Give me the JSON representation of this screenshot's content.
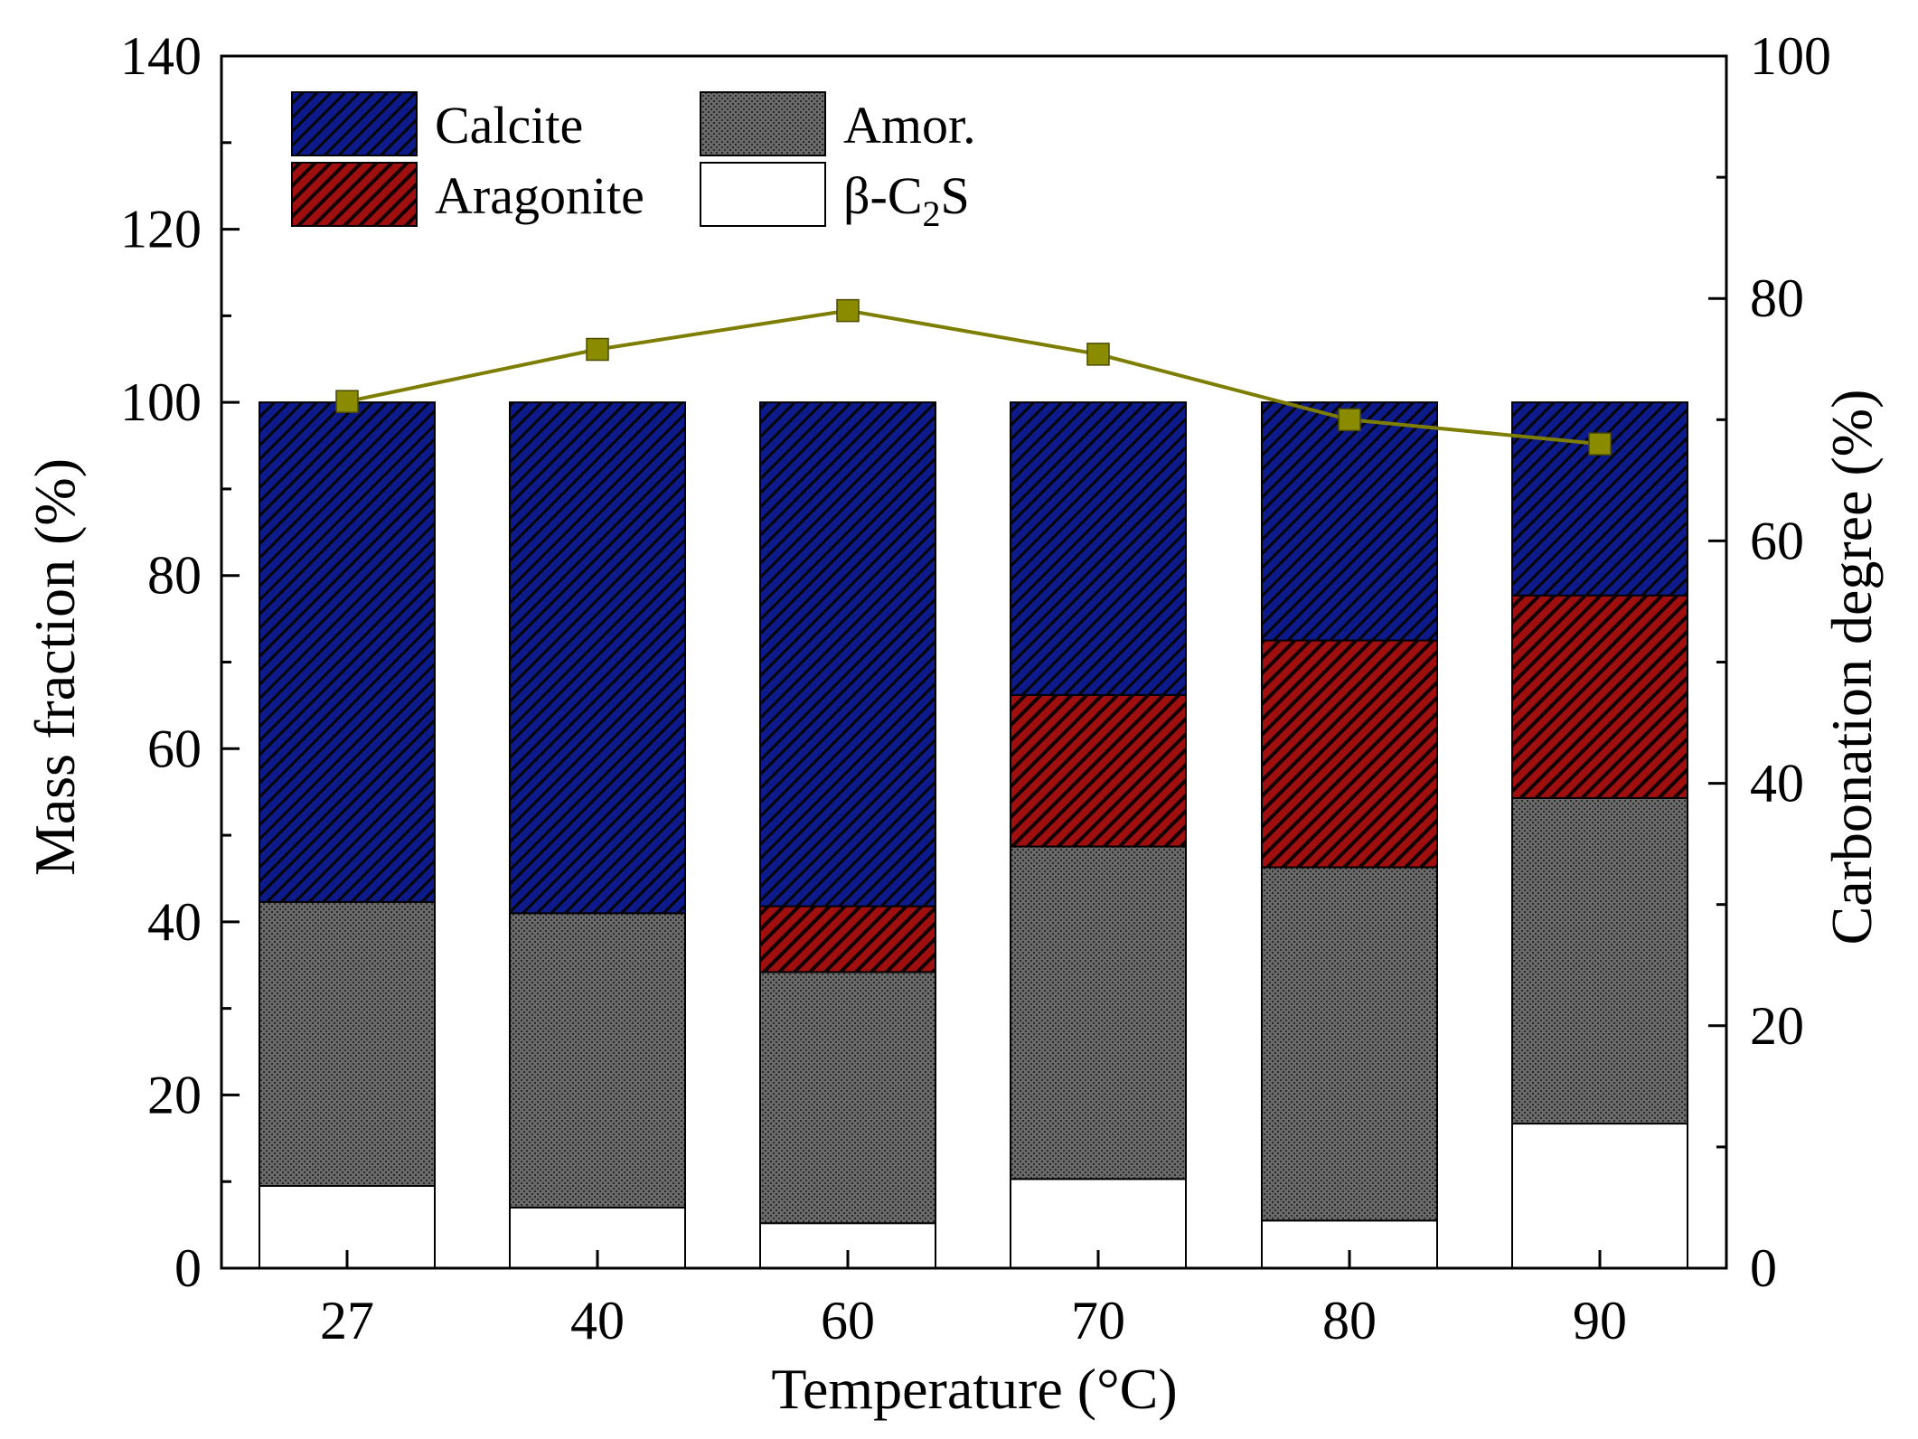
{
  "chart_data": {
    "type": "bar",
    "subtype": "stacked bar with line on secondary axis",
    "categories": [
      "27",
      "40",
      "60",
      "70",
      "80",
      "90"
    ],
    "xlabel": "Temperature (°C)",
    "ylabel": "Mass fraction (%)",
    "y2label": "Carbonation degree (%)",
    "ylim": [
      0,
      140
    ],
    "y2lim": [
      0,
      100
    ],
    "yticks": [
      "0",
      "20",
      "40",
      "60",
      "80",
      "100",
      "120",
      "140"
    ],
    "y2ticks": [
      "0",
      "20",
      "40",
      "60",
      "80",
      "100"
    ],
    "series": [
      {
        "name": "β-C2S",
        "key": "c2s",
        "values": [
          9.5,
          7.0,
          5.2,
          10.3,
          5.5,
          16.7
        ]
      },
      {
        "name": "Amor.",
        "key": "amor",
        "values": [
          32.8,
          34.0,
          29.0,
          38.4,
          40.8,
          37.6
        ]
      },
      {
        "name": "Aragonite",
        "key": "aragonite",
        "values": [
          0,
          0,
          7.6,
          17.5,
          26.2,
          23.4
        ]
      },
      {
        "name": "Calcite",
        "key": "calcite",
        "values": [
          57.7,
          59.0,
          58.2,
          33.8,
          27.5,
          22.3
        ]
      }
    ],
    "line": {
      "name": "Carbonation degree",
      "axis": "right",
      "values": [
        71.5,
        75.8,
        79.0,
        75.4,
        70.0,
        68.0
      ]
    },
    "legend": {
      "placement": "top-left",
      "items": [
        {
          "key": "calcite",
          "label": "Calcite"
        },
        {
          "key": "amor",
          "label": "Amor."
        },
        {
          "key": "aragonite",
          "label": "Aragonite"
        },
        {
          "key": "c2s",
          "label_main": "β-C",
          "label_sub": "2",
          "label_end": "S"
        }
      ]
    },
    "colors": {
      "calcite": "#0d1a8a",
      "aragonite": "#9c0f0f",
      "amor": "#666666",
      "c2s": "#ffffff",
      "line": "#7d7d00",
      "marker": "#8b8b00"
    }
  }
}
